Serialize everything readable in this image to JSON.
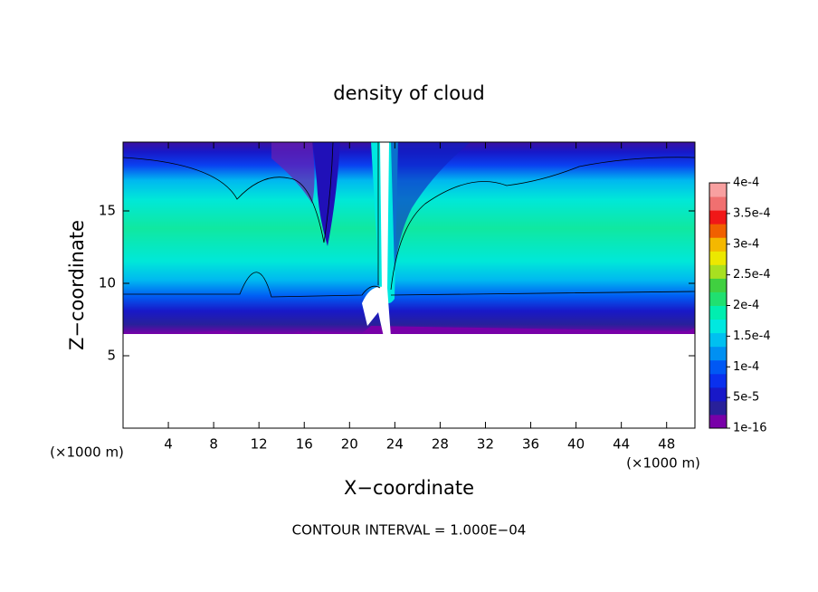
{
  "chart_data": {
    "type": "contour",
    "title": "density of cloud",
    "x_label": "X−coordinate",
    "y_label": "Z−coordinate",
    "x_unit_labels": [
      "(×1000 m)",
      "(×1000 m)"
    ],
    "annotation": "CONTOUR INTERVAL = 1.000E−04",
    "xlim": [
      0,
      50.5
    ],
    "ylim": [
      0,
      19.75
    ],
    "xticks": [
      4,
      8,
      12,
      16,
      20,
      24,
      28,
      32,
      36,
      40,
      44,
      48
    ],
    "yticks": [
      5,
      10,
      15
    ],
    "colorbar": {
      "clim": [
        1e-16,
        0.0004
      ],
      "ticks": [
        {
          "value": 1e-16,
          "label": "1e-16"
        },
        {
          "value": 5e-05,
          "label": "5e-5"
        },
        {
          "value": 0.0001,
          "label": "1e-4"
        },
        {
          "value": 0.00015,
          "label": "1.5e-4"
        },
        {
          "value": 0.0002,
          "label": "2e-4"
        },
        {
          "value": 0.00025,
          "label": "2.5e-4"
        },
        {
          "value": 0.0003,
          "label": "3e-4"
        },
        {
          "value": 0.00035,
          "label": "3.5e-4"
        },
        {
          "value": 0.0004,
          "label": "4e-4"
        }
      ],
      "colors": [
        "#7800a8",
        "#28209a",
        "#1818c8",
        "#0a30ee",
        "#0058f4",
        "#0090f2",
        "#00c0f0",
        "#00e8e0",
        "#00eeb0",
        "#20e070",
        "#40d040",
        "#a8e020",
        "#ece800",
        "#f4b800",
        "#f06000",
        "#f01818",
        "#f07070",
        "#f8a0a0"
      ]
    }
  }
}
